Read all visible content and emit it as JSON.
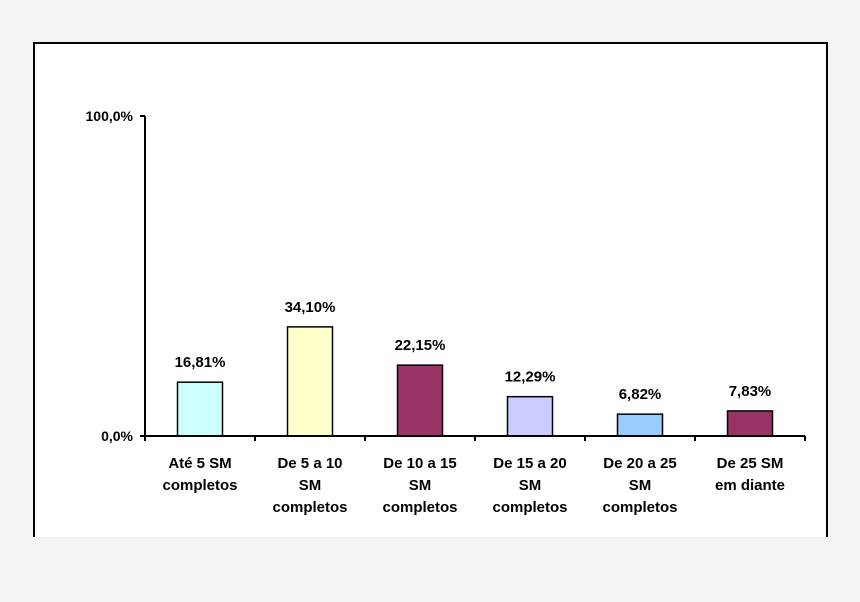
{
  "chart_data": {
    "type": "bar",
    "categories": [
      [
        "Até 5 SM",
        "completos"
      ],
      [
        "De 5 a 10",
        "SM",
        "completos"
      ],
      [
        "De 10 a 15",
        "SM",
        "completos"
      ],
      [
        "De 15 a 20",
        "SM",
        "completos"
      ],
      [
        "De 20 a 25",
        "SM",
        "completos"
      ],
      [
        "De 25 SM",
        "em diante"
      ]
    ],
    "values": [
      16.81,
      34.1,
      22.15,
      12.29,
      6.82,
      7.83
    ],
    "data_labels": [
      "16,81%",
      "34,10%",
      "22,15%",
      "12,29%",
      "6,82%",
      "7,83%"
    ],
    "bar_colors": [
      "#ccffff",
      "#ffffcc",
      "#993366",
      "#ccccff",
      "#99ccff",
      "#993366"
    ],
    "ylim": [
      0,
      100
    ],
    "y_ticks": [
      0,
      100
    ],
    "y_tick_labels": [
      "0,0%",
      "100,0%"
    ],
    "title": "",
    "xlabel": "",
    "ylabel": "",
    "grid": false,
    "legend": "none"
  }
}
